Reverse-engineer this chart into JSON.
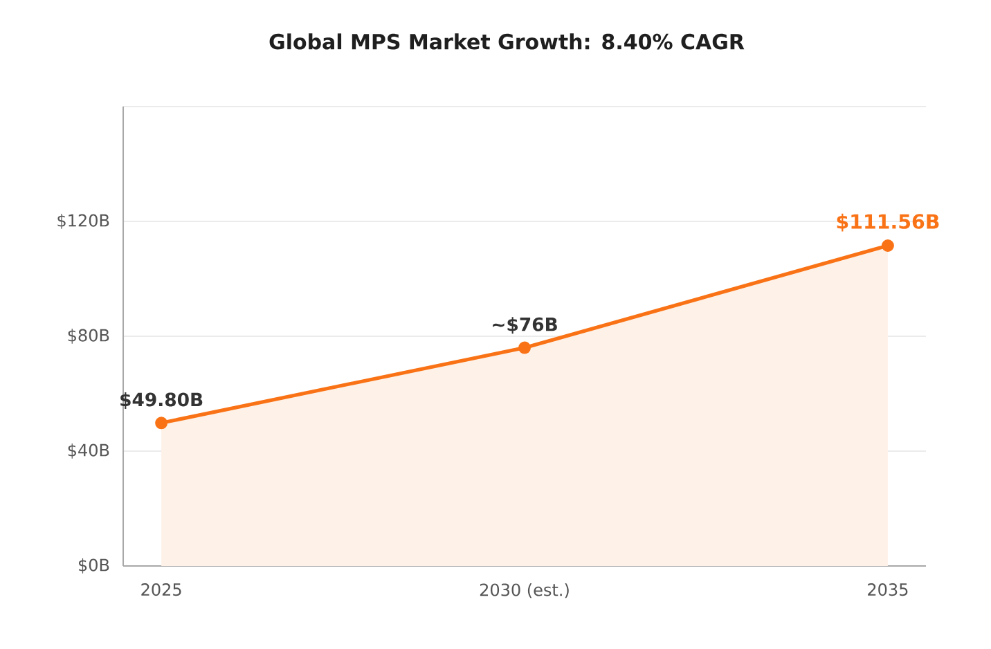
{
  "chart_data": {
    "type": "area",
    "title": "Global MPS Market Growth: 8.40% CAGR",
    "categories": [
      "2025",
      "2030 (est.)",
      "2035"
    ],
    "values": [
      49.8,
      76,
      111.56
    ],
    "value_labels": [
      "$49.80B",
      "~$76B",
      "$111.56B"
    ],
    "color": "#f97316",
    "ylim": [
      0,
      160
    ],
    "yticks": [
      {
        "value": 0,
        "label": "$0B"
      },
      {
        "value": 40,
        "label": "$40B"
      },
      {
        "value": 80,
        "label": "$80B"
      },
      {
        "value": 120,
        "label": "$120B"
      },
      {
        "value": 160,
        "label": null
      }
    ],
    "grid": "y",
    "marker": "circle",
    "line_style": "solid"
  }
}
